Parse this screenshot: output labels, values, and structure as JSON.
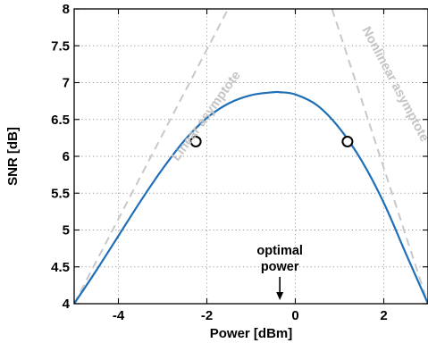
{
  "chart_data": {
    "type": "line",
    "title": "",
    "xlabel": "Power [dBm]",
    "ylabel": "SNR [dB]",
    "xlim": [
      -5,
      3
    ],
    "ylim": [
      4,
      8
    ],
    "grid": true,
    "xticks": [
      -4,
      -2,
      0,
      2
    ],
    "xtick_labels": [
      "-4",
      "-2",
      "0",
      "2"
    ],
    "yticks": [
      4,
      4.5,
      5,
      5.5,
      6,
      6.5,
      7,
      7.5,
      8
    ],
    "ytick_labels": [
      "4",
      "4.5",
      "5",
      "5.5",
      "6",
      "6.5",
      "7",
      "7.5",
      "8"
    ],
    "series": [
      {
        "style": "solid",
        "color": "#1f6fb8",
        "x": [
          -5,
          -4.5,
          -4,
          -3.5,
          -3,
          -2.5,
          -2,
          -1.5,
          -1,
          -0.5,
          -0.35,
          0,
          0.5,
          1,
          1.5,
          2,
          2.5,
          3
        ],
        "y": [
          4.0,
          4.45,
          4.92,
          5.39,
          5.83,
          6.22,
          6.52,
          6.72,
          6.83,
          6.87,
          6.87,
          6.84,
          6.69,
          6.38,
          5.94,
          5.37,
          4.68,
          4.0
        ]
      },
      {
        "style": "dashed",
        "color": "#c8c8c8",
        "x": [
          -5,
          -1.52
        ],
        "y": [
          4.0,
          8.0
        ]
      },
      {
        "style": "dashed",
        "color": "#c8c8c8",
        "x": [
          0.83,
          3.0
        ],
        "y": [
          8.0,
          4.0
        ]
      }
    ],
    "markers": [
      {
        "x": -2.25,
        "y": 6.2
      },
      {
        "x": 1.18,
        "y": 6.2
      }
    ],
    "annotations": [
      {
        "text": "Linear asymptote",
        "color": "#c4c4c4"
      },
      {
        "text": "Nonlinear asymptote",
        "color": "#c4c4c4"
      },
      {
        "text": "optimal",
        "x": -0.35
      },
      {
        "text": "power",
        "x": -0.35
      }
    ]
  }
}
